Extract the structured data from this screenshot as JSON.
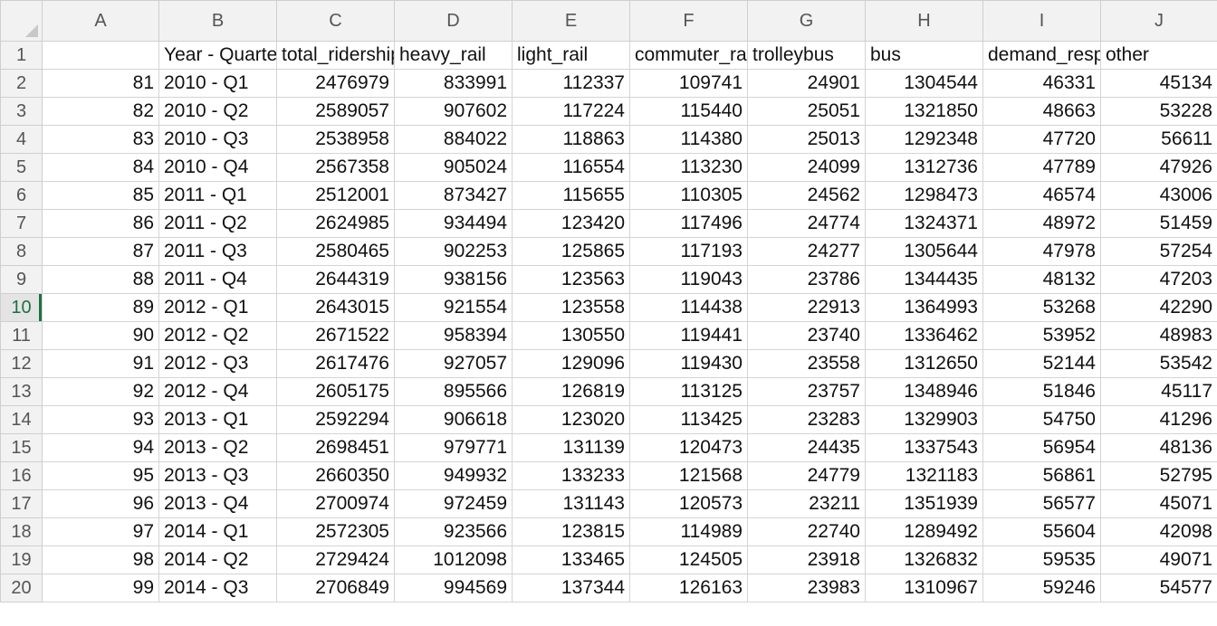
{
  "colors": {
    "header_bg": "#f2f2f2",
    "grid_line": "#d4d4d4",
    "active_accent": "#1d7044"
  },
  "column_headers": [
    "A",
    "B",
    "C",
    "D",
    "E",
    "F",
    "G",
    "H",
    "I",
    "J"
  ],
  "header_row": {
    "row_num": "1",
    "cells": [
      "",
      "Year - Quarter",
      "total_ridership",
      "heavy_rail",
      "light_rail",
      "commuter_rail",
      "trolleybus",
      "bus",
      "demand_response",
      "other"
    ]
  },
  "active_row": "10",
  "rows": [
    {
      "num": "2",
      "cells": [
        "81",
        "2010 - Q1",
        "2476979",
        "833991",
        "112337",
        "109741",
        "24901",
        "1304544",
        "46331",
        "45134"
      ]
    },
    {
      "num": "3",
      "cells": [
        "82",
        "2010 - Q2",
        "2589057",
        "907602",
        "117224",
        "115440",
        "25051",
        "1321850",
        "48663",
        "53228"
      ]
    },
    {
      "num": "4",
      "cells": [
        "83",
        "2010 - Q3",
        "2538958",
        "884022",
        "118863",
        "114380",
        "25013",
        "1292348",
        "47720",
        "56611"
      ]
    },
    {
      "num": "5",
      "cells": [
        "84",
        "2010 - Q4",
        "2567358",
        "905024",
        "116554",
        "113230",
        "24099",
        "1312736",
        "47789",
        "47926"
      ]
    },
    {
      "num": "6",
      "cells": [
        "85",
        "2011 - Q1",
        "2512001",
        "873427",
        "115655",
        "110305",
        "24562",
        "1298473",
        "46574",
        "43006"
      ]
    },
    {
      "num": "7",
      "cells": [
        "86",
        "2011 - Q2",
        "2624985",
        "934494",
        "123420",
        "117496",
        "24774",
        "1324371",
        "48972",
        "51459"
      ]
    },
    {
      "num": "8",
      "cells": [
        "87",
        "2011 - Q3",
        "2580465",
        "902253",
        "125865",
        "117193",
        "24277",
        "1305644",
        "47978",
        "57254"
      ]
    },
    {
      "num": "9",
      "cells": [
        "88",
        "2011 - Q4",
        "2644319",
        "938156",
        "123563",
        "119043",
        "23786",
        "1344435",
        "48132",
        "47203"
      ]
    },
    {
      "num": "10",
      "cells": [
        "89",
        "2012 - Q1",
        "2643015",
        "921554",
        "123558",
        "114438",
        "22913",
        "1364993",
        "53268",
        "42290"
      ]
    },
    {
      "num": "11",
      "cells": [
        "90",
        "2012 - Q2",
        "2671522",
        "958394",
        "130550",
        "119441",
        "23740",
        "1336462",
        "53952",
        "48983"
      ]
    },
    {
      "num": "12",
      "cells": [
        "91",
        "2012 - Q3",
        "2617476",
        "927057",
        "129096",
        "119430",
        "23558",
        "1312650",
        "52144",
        "53542"
      ]
    },
    {
      "num": "13",
      "cells": [
        "92",
        "2012 - Q4",
        "2605175",
        "895566",
        "126819",
        "113125",
        "23757",
        "1348946",
        "51846",
        "45117"
      ]
    },
    {
      "num": "14",
      "cells": [
        "93",
        "2013 - Q1",
        "2592294",
        "906618",
        "123020",
        "113425",
        "23283",
        "1329903",
        "54750",
        "41296"
      ]
    },
    {
      "num": "15",
      "cells": [
        "94",
        "2013 - Q2",
        "2698451",
        "979771",
        "131139",
        "120473",
        "24435",
        "1337543",
        "56954",
        "48136"
      ]
    },
    {
      "num": "16",
      "cells": [
        "95",
        "2013 - Q3",
        "2660350",
        "949932",
        "133233",
        "121568",
        "24779",
        "1321183",
        "56861",
        "52795"
      ]
    },
    {
      "num": "17",
      "cells": [
        "96",
        "2013 - Q4",
        "2700974",
        "972459",
        "131143",
        "120573",
        "23211",
        "1351939",
        "56577",
        "45071"
      ]
    },
    {
      "num": "18",
      "cells": [
        "97",
        "2014 - Q1",
        "2572305",
        "923566",
        "123815",
        "114989",
        "22740",
        "1289492",
        "55604",
        "42098"
      ]
    },
    {
      "num": "19",
      "cells": [
        "98",
        "2014 - Q2",
        "2729424",
        "1012098",
        "133465",
        "124505",
        "23918",
        "1326832",
        "59535",
        "49071"
      ]
    },
    {
      "num": "20",
      "cells": [
        "99",
        "2014 - Q3",
        "2706849",
        "994569",
        "137344",
        "126163",
        "23983",
        "1310967",
        "59246",
        "54577"
      ]
    }
  ]
}
